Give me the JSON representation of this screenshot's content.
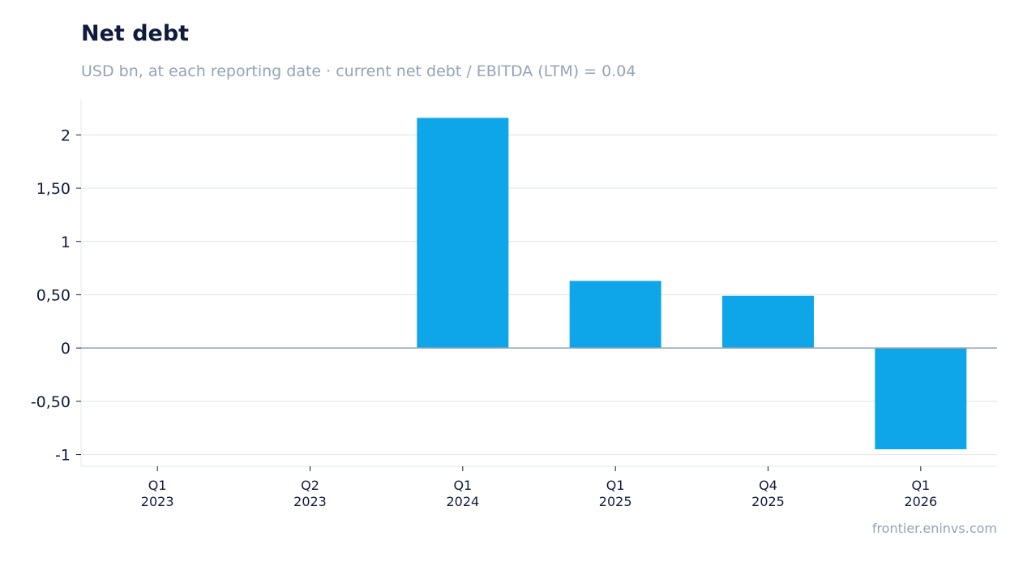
{
  "header": {
    "title": "Net debt",
    "subtitle": "USD bn, at each reporting date · current net debt / EBITDA (LTM) = 0.04"
  },
  "footer": {
    "source": "frontier.eninvs.com"
  },
  "colors": {
    "bar": "#0ea5e9",
    "grid": "#e2e8f0",
    "zero_line": "#94a3b8",
    "text": "#0f1b3d",
    "muted": "#94a3b8"
  },
  "chart_data": {
    "type": "bar",
    "title": "Net debt",
    "subtitle": "USD bn, at each reporting date · current net debt / EBITDA (LTM) = 0.04",
    "categories": [
      [
        "Q1",
        "2023"
      ],
      [
        "Q2",
        "2023"
      ],
      [
        "Q1",
        "2024"
      ],
      [
        "Q1",
        "2025"
      ],
      [
        "Q4",
        "2025"
      ],
      [
        "Q1",
        "2026"
      ]
    ],
    "values": [
      0,
      0,
      2.16,
      0.63,
      0.49,
      -0.95
    ],
    "ylim": [
      -1.11,
      2.33
    ],
    "yticks": [
      {
        "value": 2,
        "label": "2"
      },
      {
        "value": 1.5,
        "label": "1,50"
      },
      {
        "value": 1,
        "label": "1"
      },
      {
        "value": 0.5,
        "label": "0,50"
      },
      {
        "value": 0,
        "label": "0"
      },
      {
        "value": -0.5,
        "label": "-0,50"
      },
      {
        "value": -1,
        "label": "-1"
      }
    ],
    "grid": true,
    "legend": "none"
  }
}
